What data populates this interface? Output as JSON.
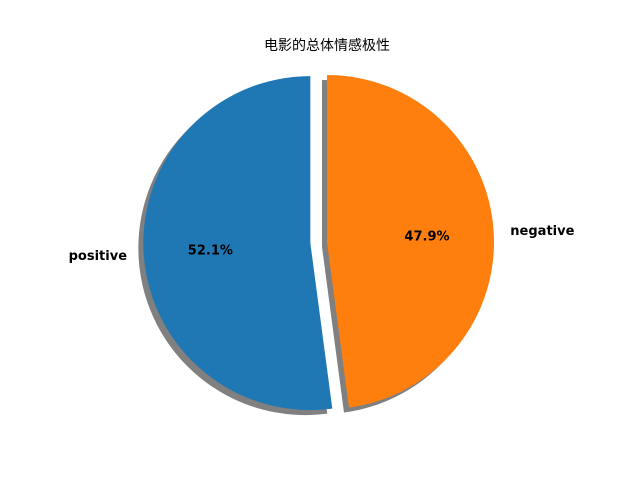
{
  "chart_data": {
    "type": "pie",
    "title": "电影的总体情感极性",
    "labels": [
      "positive",
      "negative"
    ],
    "values": [
      52.1,
      47.9
    ],
    "percent_labels": [
      "52.1%",
      "47.9%"
    ],
    "colors": [
      "#1f77b4",
      "#ff7f0e"
    ],
    "explode": [
      0.1,
      0
    ],
    "start_angle_deg": 90,
    "direction": "counterclockwise",
    "shadow": true,
    "legend": false
  }
}
